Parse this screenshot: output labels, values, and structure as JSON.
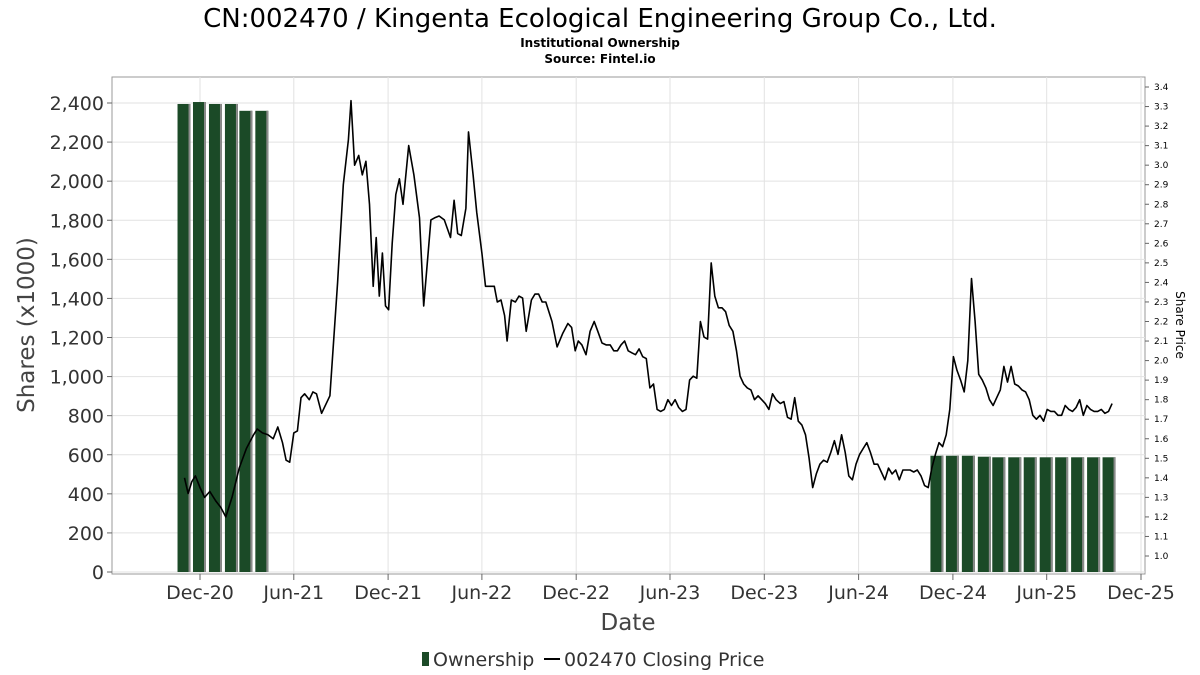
{
  "chart_data": {
    "type": "bar",
    "title": "CN:002470 / Kingenta Ecological Engineering Group Co., Ltd.",
    "subtitle": "Institutional Ownership",
    "source": "Source: Fintel.io",
    "xlabel": "Date",
    "ylabel": "Shares (x1000)",
    "y2label": "Share Price",
    "ylim": [
      0,
      2500
    ],
    "y2lim": [
      0.92,
      3.45
    ],
    "xlim": [
      "2020-08-01",
      "2025-12-31"
    ],
    "yticks": [
      0,
      200,
      400,
      600,
      800,
      1000,
      1200,
      1400,
      1600,
      1800,
      2000,
      2200,
      2400
    ],
    "ytick_labels": [
      "0",
      "200",
      "400",
      "600",
      "800",
      "1,000",
      "1,200",
      "1,400",
      "1,600",
      "1,800",
      "2,000",
      "2,200",
      "2,400"
    ],
    "y2ticks": [
      "1.0",
      "1.1",
      "1.2",
      "1.3",
      "1.4",
      "1.5",
      "1.6",
      "1.7",
      "1.8",
      "1.9",
      "2.0",
      "2.1",
      "2.2",
      "2.3",
      "2.4",
      "2.5",
      "2.6",
      "2.7",
      "2.8",
      "2.9",
      "3.0",
      "3.1",
      "3.2",
      "3.3",
      "3.4"
    ],
    "xticks": [
      {
        "date": "2020-12-01",
        "label": "Dec-20"
      },
      {
        "date": "2021-06-01",
        "label": "Jun-21"
      },
      {
        "date": "2021-12-01",
        "label": "Dec-21"
      },
      {
        "date": "2022-06-01",
        "label": "Jun-22"
      },
      {
        "date": "2022-12-01",
        "label": "Dec-22"
      },
      {
        "date": "2023-06-01",
        "label": "Jun-23"
      },
      {
        "date": "2023-12-01",
        "label": "Dec-23"
      },
      {
        "date": "2024-06-01",
        "label": "Jun-24"
      },
      {
        "date": "2024-12-01",
        "label": "Dec-24"
      },
      {
        "date": "2025-06-01",
        "label": "Jun-25"
      },
      {
        "date": "2025-12-01",
        "label": "Dec-25"
      }
    ],
    "grid": true,
    "legend_placement": "bottom",
    "series": [
      {
        "name": "Ownership",
        "type": "bar",
        "color": "#1b4a27",
        "points": [
          [
            "2020-10-31",
            2395
          ],
          [
            "2020-11-30",
            2405
          ],
          [
            "2020-12-31",
            2395
          ],
          [
            "2021-01-31",
            2395
          ],
          [
            "2021-02-28",
            2360
          ],
          [
            "2021-03-31",
            2360
          ],
          [
            "2024-10-31",
            595
          ],
          [
            "2024-11-30",
            595
          ],
          [
            "2024-12-31",
            595
          ],
          [
            "2025-01-31",
            590
          ],
          [
            "2025-02-28",
            587
          ],
          [
            "2025-03-31",
            587
          ],
          [
            "2025-04-30",
            587
          ],
          [
            "2025-05-31",
            587
          ],
          [
            "2025-06-30",
            587
          ],
          [
            "2025-07-31",
            587
          ],
          [
            "2025-08-31",
            587
          ],
          [
            "2025-09-30",
            587
          ]
        ]
      },
      {
        "name": "002470 Closing Price",
        "type": "line",
        "axis": "right",
        "color": "#000000",
        "points": [
          [
            "2020-11-01",
            1.4
          ],
          [
            "2020-11-08",
            1.32
          ],
          [
            "2020-11-15",
            1.38
          ],
          [
            "2020-11-22",
            1.41
          ],
          [
            "2020-12-01",
            1.35
          ],
          [
            "2020-12-10",
            1.3
          ],
          [
            "2020-12-20",
            1.33
          ],
          [
            "2021-01-01",
            1.28
          ],
          [
            "2021-01-10",
            1.25
          ],
          [
            "2021-01-20",
            1.2
          ],
          [
            "2021-02-01",
            1.3
          ],
          [
            "2021-02-15",
            1.45
          ],
          [
            "2021-03-01",
            1.55
          ],
          [
            "2021-03-15",
            1.62
          ],
          [
            "2021-03-22",
            1.65
          ],
          [
            "2021-04-01",
            1.63
          ],
          [
            "2021-04-12",
            1.62
          ],
          [
            "2021-04-22",
            1.6
          ],
          [
            "2021-05-01",
            1.66
          ],
          [
            "2021-05-10",
            1.58
          ],
          [
            "2021-05-17",
            1.49
          ],
          [
            "2021-05-24",
            1.48
          ],
          [
            "2021-06-01",
            1.63
          ],
          [
            "2021-06-08",
            1.64
          ],
          [
            "2021-06-15",
            1.81
          ],
          [
            "2021-06-22",
            1.83
          ],
          [
            "2021-07-01",
            1.8
          ],
          [
            "2021-07-08",
            1.84
          ],
          [
            "2021-07-15",
            1.83
          ],
          [
            "2021-07-25",
            1.73
          ],
          [
            "2021-08-10",
            1.82
          ],
          [
            "2021-08-25",
            2.4
          ],
          [
            "2021-09-05",
            2.9
          ],
          [
            "2021-09-15",
            3.13
          ],
          [
            "2021-09-20",
            3.33
          ],
          [
            "2021-09-27",
            3.0
          ],
          [
            "2021-10-05",
            3.05
          ],
          [
            "2021-10-12",
            2.95
          ],
          [
            "2021-10-19",
            3.02
          ],
          [
            "2021-10-26",
            2.8
          ],
          [
            "2021-11-02",
            2.38
          ],
          [
            "2021-11-08",
            2.63
          ],
          [
            "2021-11-14",
            2.33
          ],
          [
            "2021-11-20",
            2.55
          ],
          [
            "2021-11-26",
            2.28
          ],
          [
            "2021-12-02",
            2.26
          ],
          [
            "2021-12-09",
            2.6
          ],
          [
            "2021-12-16",
            2.85
          ],
          [
            "2021-12-23",
            2.93
          ],
          [
            "2021-12-30",
            2.8
          ],
          [
            "2022-01-10",
            3.1
          ],
          [
            "2022-01-20",
            2.95
          ],
          [
            "2022-01-31",
            2.73
          ],
          [
            "2022-02-08",
            2.28
          ],
          [
            "2022-02-22",
            2.72
          ],
          [
            "2022-03-01",
            2.73
          ],
          [
            "2022-03-10",
            2.74
          ],
          [
            "2022-03-20",
            2.72
          ],
          [
            "2022-04-01",
            2.63
          ],
          [
            "2022-04-08",
            2.82
          ],
          [
            "2022-04-15",
            2.65
          ],
          [
            "2022-04-22",
            2.64
          ],
          [
            "2022-05-01",
            2.78
          ],
          [
            "2022-05-06",
            3.17
          ],
          [
            "2022-05-15",
            2.95
          ],
          [
            "2022-05-22",
            2.76
          ],
          [
            "2022-06-01",
            2.55
          ],
          [
            "2022-06-08",
            2.38
          ],
          [
            "2022-06-15",
            2.38
          ],
          [
            "2022-06-25",
            2.38
          ],
          [
            "2022-07-01",
            2.3
          ],
          [
            "2022-07-08",
            2.31
          ],
          [
            "2022-07-15",
            2.23
          ],
          [
            "2022-07-20",
            2.1
          ],
          [
            "2022-07-28",
            2.31
          ],
          [
            "2022-08-05",
            2.3
          ],
          [
            "2022-08-12",
            2.33
          ],
          [
            "2022-08-19",
            2.32
          ],
          [
            "2022-08-26",
            2.15
          ],
          [
            "2022-09-05",
            2.31
          ],
          [
            "2022-09-12",
            2.34
          ],
          [
            "2022-09-19",
            2.34
          ],
          [
            "2022-09-26",
            2.3
          ],
          [
            "2022-10-03",
            2.3
          ],
          [
            "2022-10-15",
            2.2
          ],
          [
            "2022-10-25",
            2.07
          ],
          [
            "2022-11-05",
            2.14
          ],
          [
            "2022-11-15",
            2.19
          ],
          [
            "2022-11-22",
            2.17
          ],
          [
            "2022-11-29",
            2.05
          ],
          [
            "2022-12-05",
            2.1
          ],
          [
            "2022-12-12",
            2.08
          ],
          [
            "2022-12-20",
            2.03
          ],
          [
            "2022-12-28",
            2.15
          ],
          [
            "2023-01-05",
            2.2
          ],
          [
            "2023-01-12",
            2.15
          ],
          [
            "2023-01-20",
            2.09
          ],
          [
            "2023-01-28",
            2.08
          ],
          [
            "2023-02-05",
            2.08
          ],
          [
            "2023-02-12",
            2.05
          ],
          [
            "2023-02-19",
            2.05
          ],
          [
            "2023-02-26",
            2.08
          ],
          [
            "2023-03-05",
            2.1
          ],
          [
            "2023-03-12",
            2.05
          ],
          [
            "2023-03-19",
            2.04
          ],
          [
            "2023-03-26",
            2.03
          ],
          [
            "2023-04-02",
            2.06
          ],
          [
            "2023-04-09",
            2.02
          ],
          [
            "2023-04-16",
            2.01
          ],
          [
            "2023-04-23",
            1.86
          ],
          [
            "2023-04-30",
            1.88
          ],
          [
            "2023-05-07",
            1.75
          ],
          [
            "2023-05-14",
            1.74
          ],
          [
            "2023-05-21",
            1.75
          ],
          [
            "2023-05-28",
            1.8
          ],
          [
            "2023-06-04",
            1.77
          ],
          [
            "2023-06-11",
            1.8
          ],
          [
            "2023-06-18",
            1.76
          ],
          [
            "2023-06-25",
            1.74
          ],
          [
            "2023-07-02",
            1.75
          ],
          [
            "2023-07-09",
            1.9
          ],
          [
            "2023-07-16",
            1.92
          ],
          [
            "2023-07-23",
            1.91
          ],
          [
            "2023-07-30",
            2.2
          ],
          [
            "2023-08-06",
            2.12
          ],
          [
            "2023-08-13",
            2.11
          ],
          [
            "2023-08-20",
            2.5
          ],
          [
            "2023-08-27",
            2.33
          ],
          [
            "2023-09-03",
            2.27
          ],
          [
            "2023-09-10",
            2.27
          ],
          [
            "2023-09-17",
            2.25
          ],
          [
            "2023-09-24",
            2.18
          ],
          [
            "2023-10-01",
            2.15
          ],
          [
            "2023-10-08",
            2.05
          ],
          [
            "2023-10-15",
            1.92
          ],
          [
            "2023-10-22",
            1.88
          ],
          [
            "2023-10-29",
            1.86
          ],
          [
            "2023-11-05",
            1.85
          ],
          [
            "2023-11-12",
            1.8
          ],
          [
            "2023-11-19",
            1.82
          ],
          [
            "2023-11-26",
            1.8
          ],
          [
            "2023-12-03",
            1.78
          ],
          [
            "2023-12-10",
            1.75
          ],
          [
            "2023-12-17",
            1.83
          ],
          [
            "2023-12-24",
            1.8
          ],
          [
            "2024-01-01",
            1.78
          ],
          [
            "2024-01-08",
            1.79
          ],
          [
            "2024-01-15",
            1.71
          ],
          [
            "2024-01-22",
            1.7
          ],
          [
            "2024-01-29",
            1.81
          ],
          [
            "2024-02-05",
            1.69
          ],
          [
            "2024-02-12",
            1.67
          ],
          [
            "2024-02-19",
            1.62
          ],
          [
            "2024-02-26",
            1.5
          ],
          [
            "2024-03-04",
            1.35
          ],
          [
            "2024-03-11",
            1.42
          ],
          [
            "2024-03-18",
            1.47
          ],
          [
            "2024-03-25",
            1.49
          ],
          [
            "2024-04-01",
            1.48
          ],
          [
            "2024-04-08",
            1.53
          ],
          [
            "2024-04-15",
            1.59
          ],
          [
            "2024-04-22",
            1.52
          ],
          [
            "2024-04-29",
            1.62
          ],
          [
            "2024-05-06",
            1.53
          ],
          [
            "2024-05-13",
            1.41
          ],
          [
            "2024-05-20",
            1.39
          ],
          [
            "2024-05-27",
            1.47
          ],
          [
            "2024-06-03",
            1.52
          ],
          [
            "2024-06-10",
            1.55
          ],
          [
            "2024-06-17",
            1.58
          ],
          [
            "2024-06-24",
            1.53
          ],
          [
            "2024-07-01",
            1.47
          ],
          [
            "2024-07-08",
            1.47
          ],
          [
            "2024-07-15",
            1.43
          ],
          [
            "2024-07-22",
            1.39
          ],
          [
            "2024-07-29",
            1.45
          ],
          [
            "2024-08-05",
            1.42
          ],
          [
            "2024-08-12",
            1.44
          ],
          [
            "2024-08-19",
            1.39
          ],
          [
            "2024-08-26",
            1.44
          ],
          [
            "2024-09-02",
            1.44
          ],
          [
            "2024-09-09",
            1.44
          ],
          [
            "2024-09-16",
            1.43
          ],
          [
            "2024-09-23",
            1.44
          ],
          [
            "2024-09-30",
            1.41
          ],
          [
            "2024-10-07",
            1.36
          ],
          [
            "2024-10-14",
            1.35
          ],
          [
            "2024-10-21",
            1.45
          ],
          [
            "2024-10-28",
            1.52
          ],
          [
            "2024-11-04",
            1.58
          ],
          [
            "2024-11-11",
            1.56
          ],
          [
            "2024-11-18",
            1.62
          ],
          [
            "2024-11-25",
            1.75
          ],
          [
            "2024-12-02",
            2.02
          ],
          [
            "2024-12-09",
            1.95
          ],
          [
            "2024-12-16",
            1.9
          ],
          [
            "2024-12-23",
            1.84
          ],
          [
            "2024-12-30",
            2.0
          ],
          [
            "2025-01-06",
            2.42
          ],
          [
            "2025-01-13",
            2.2
          ],
          [
            "2025-01-20",
            1.93
          ],
          [
            "2025-01-27",
            1.9
          ],
          [
            "2025-02-03",
            1.86
          ],
          [
            "2025-02-10",
            1.8
          ],
          [
            "2025-02-17",
            1.77
          ],
          [
            "2025-02-24",
            1.81
          ],
          [
            "2025-03-03",
            1.85
          ],
          [
            "2025-03-10",
            1.97
          ],
          [
            "2025-03-17",
            1.89
          ],
          [
            "2025-03-24",
            1.97
          ],
          [
            "2025-03-31",
            1.88
          ],
          [
            "2025-04-07",
            1.87
          ],
          [
            "2025-04-14",
            1.85
          ],
          [
            "2025-04-21",
            1.84
          ],
          [
            "2025-04-28",
            1.8
          ],
          [
            "2025-05-05",
            1.72
          ],
          [
            "2025-05-12",
            1.7
          ],
          [
            "2025-05-19",
            1.72
          ],
          [
            "2025-05-26",
            1.69
          ],
          [
            "2025-06-02",
            1.75
          ],
          [
            "2025-06-09",
            1.74
          ],
          [
            "2025-06-16",
            1.74
          ],
          [
            "2025-06-23",
            1.72
          ],
          [
            "2025-06-30",
            1.72
          ],
          [
            "2025-07-07",
            1.77
          ],
          [
            "2025-07-14",
            1.75
          ],
          [
            "2025-07-21",
            1.74
          ],
          [
            "2025-07-28",
            1.76
          ],
          [
            "2025-08-04",
            1.8
          ],
          [
            "2025-08-11",
            1.72
          ],
          [
            "2025-08-18",
            1.77
          ],
          [
            "2025-08-25",
            1.75
          ],
          [
            "2025-09-01",
            1.74
          ],
          [
            "2025-09-08",
            1.74
          ],
          [
            "2025-09-15",
            1.75
          ],
          [
            "2025-09-22",
            1.73
          ],
          [
            "2025-09-29",
            1.74
          ],
          [
            "2025-10-06",
            1.78
          ]
        ]
      }
    ]
  }
}
